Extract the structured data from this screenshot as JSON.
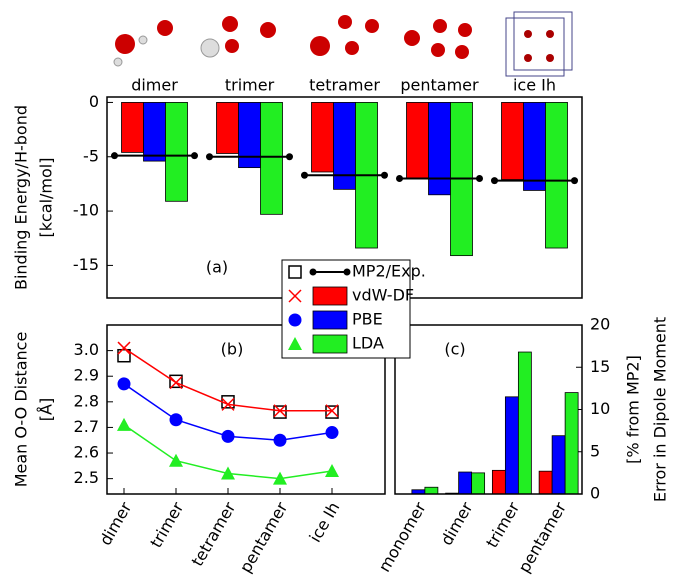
{
  "chart_data": [
    {
      "type": "bar",
      "annotation": "(a)",
      "ylabel": [
        "Binding Energy/H-bond",
        "[kcal/mol]"
      ],
      "categories": [
        "dimer",
        "trimer",
        "tetramer",
        "pentamer",
        "ice Ih"
      ],
      "ylim": [
        -18,
        0.5
      ],
      "yticks": [
        0,
        -5,
        -10,
        -15
      ],
      "series": [
        {
          "name": "MP2/Exp.",
          "color": "#000000",
          "marker": "segment",
          "values": [
            -4.9,
            -5.0,
            -6.7,
            -7.0,
            -7.2
          ]
        },
        {
          "name": "vdW-DF",
          "color": "#ff0000",
          "values": [
            -4.6,
            -4.7,
            -6.4,
            -7.0,
            -7.1
          ]
        },
        {
          "name": "PBE",
          "color": "#0000ff",
          "values": [
            -5.4,
            -6.0,
            -8.0,
            -8.5,
            -8.1
          ]
        },
        {
          "name": "LDA",
          "color": "#22ee22",
          "values": [
            -9.1,
            -10.3,
            -13.4,
            -14.1,
            -13.4
          ]
        }
      ]
    },
    {
      "type": "line",
      "annotation": "(b)",
      "ylabel": [
        "Mean O-O Distance",
        "[Å]"
      ],
      "categories": [
        "dimer",
        "trimer",
        "tetramer",
        "pentamer",
        "ice Ih"
      ],
      "ylim": [
        2.44,
        3.1
      ],
      "yticks": [
        2.5,
        2.6,
        2.7,
        2.8,
        2.9,
        {
          "value": 3,
          "label": "3.0"
        }
      ],
      "series": [
        {
          "color": "#000000",
          "marker": "square",
          "line": false,
          "values": [
            2.98,
            2.88,
            2.8,
            2.76,
            2.76
          ]
        },
        {
          "color": "#ff0000",
          "marker": "x",
          "line": true,
          "values": [
            3.01,
            2.875,
            2.79,
            2.765,
            2.765
          ]
        },
        {
          "color": "#0000ff",
          "marker": "circle",
          "line": true,
          "values": [
            2.87,
            2.73,
            2.665,
            2.65,
            2.68
          ]
        },
        {
          "color": "#22ee22",
          "marker": "triangle",
          "line": true,
          "values": [
            2.71,
            2.57,
            2.52,
            2.5,
            2.53
          ]
        }
      ]
    },
    {
      "type": "bar",
      "annotation": "(c)",
      "y2label": [
        "Error in Dipole Moment",
        "[% from MP2]"
      ],
      "categories": [
        "monomer",
        "dimer",
        "trimer",
        "pentamer"
      ],
      "y2lim": [
        0,
        20
      ],
      "y2ticks": [
        0,
        5,
        10,
        15,
        20
      ],
      "series": [
        {
          "color": "#ff0000",
          "axis": "y2",
          "values": [
            0,
            0.1,
            2.8,
            2.7
          ]
        },
        {
          "color": "#0000ff",
          "axis": "y2",
          "values": [
            0.5,
            2.6,
            11.5,
            6.9
          ]
        },
        {
          "color": "#22ee22",
          "axis": "y2",
          "values": [
            0.8,
            2.5,
            16.8,
            12.0
          ]
        }
      ]
    }
  ]
}
